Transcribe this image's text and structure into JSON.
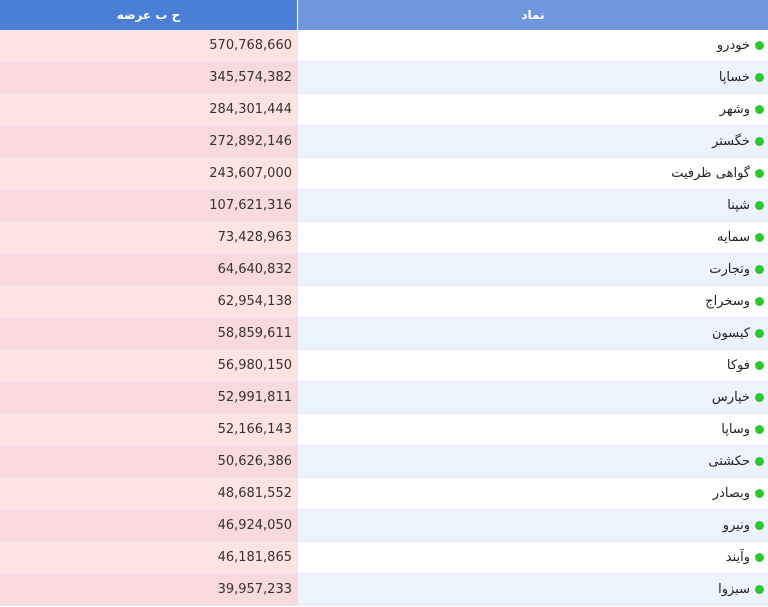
{
  "header": {
    "value_col": "ح ب عرضه",
    "symbol_col": "نماد"
  },
  "colors": {
    "header_value_bg": "#4b7fd6",
    "header_symbol_bg": "#6f97dd",
    "status_dot": "#2ec52e"
  },
  "rows": [
    {
      "symbol": "خودرو",
      "value": "570,768,660",
      "status_icon": "green-dot-icon"
    },
    {
      "symbol": "خساپا",
      "value": "345,574,382",
      "status_icon": "green-dot-icon"
    },
    {
      "symbol": "وشهر",
      "value": "284,301,444",
      "status_icon": "green-dot-icon"
    },
    {
      "symbol": "خگستر",
      "value": "272,892,146",
      "status_icon": "green-dot-icon"
    },
    {
      "symbol": "گواهی ظرفیت",
      "value": "243,607,000",
      "status_icon": "green-dot-icon"
    },
    {
      "symbol": "شپنا",
      "value": "107,621,316",
      "status_icon": "green-dot-icon"
    },
    {
      "symbol": "سمایه",
      "value": "73,428,963",
      "status_icon": "green-dot-icon"
    },
    {
      "symbol": "وتجارت",
      "value": "64,640,832",
      "status_icon": "green-dot-icon"
    },
    {
      "symbol": "وسخراج",
      "value": "62,954,138",
      "status_icon": "green-dot-icon"
    },
    {
      "symbol": "کیسون",
      "value": "58,859,611",
      "status_icon": "green-dot-icon"
    },
    {
      "symbol": "فوکا",
      "value": "56,980,150",
      "status_icon": "green-dot-icon"
    },
    {
      "symbol": "خپارس",
      "value": "52,991,811",
      "status_icon": "green-dot-icon"
    },
    {
      "symbol": "وساپا",
      "value": "52,166,143",
      "status_icon": "green-dot-icon"
    },
    {
      "symbol": "حکشتی",
      "value": "50,626,386",
      "status_icon": "green-dot-icon"
    },
    {
      "symbol": "وبصادر",
      "value": "48,681,552",
      "status_icon": "green-dot-icon"
    },
    {
      "symbol": "ونیرو",
      "value": "46,924,050",
      "status_icon": "green-dot-icon"
    },
    {
      "symbol": "وآیند",
      "value": "46,181,865",
      "status_icon": "green-dot-icon"
    },
    {
      "symbol": "سبزوا",
      "value": "39,957,233",
      "status_icon": "green-dot-icon"
    }
  ]
}
